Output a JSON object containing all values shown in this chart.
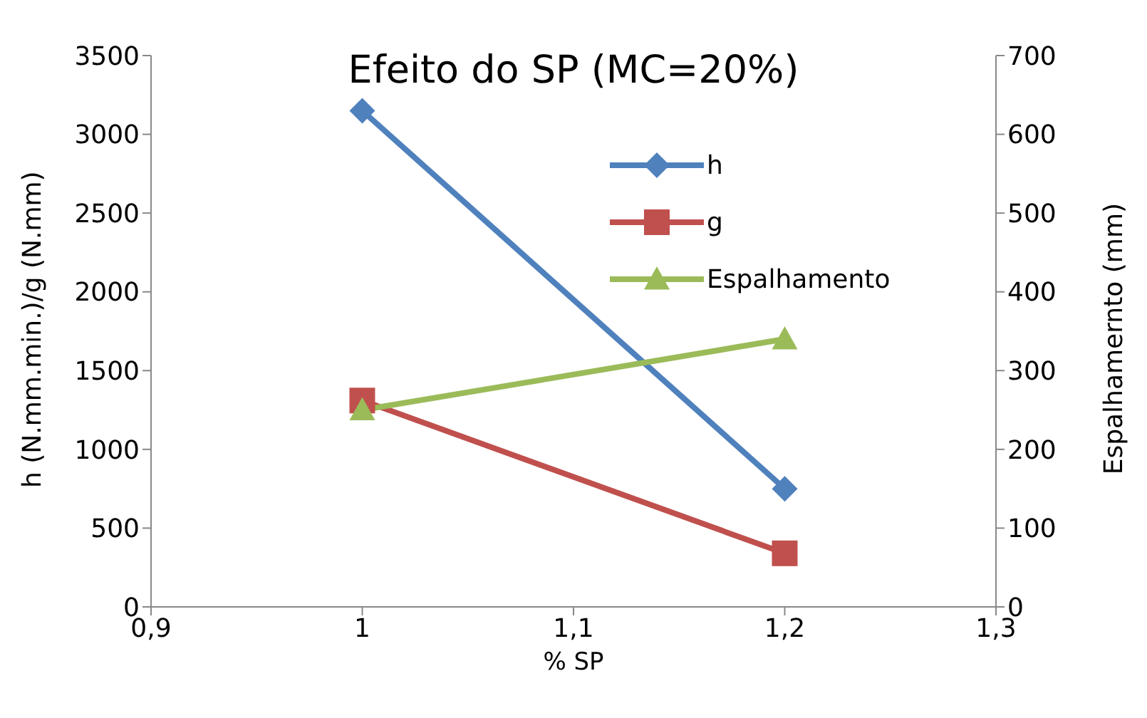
{
  "chart_data": {
    "type": "line",
    "title": "Efeito do SP (MC=20%)",
    "xlabel": "% SP",
    "ylabel": "h (N.mm.min.)/g (N.mm)",
    "y2label": "Espalhamernto (mm)",
    "x": [
      1,
      1.2
    ],
    "series": [
      {
        "name": "h",
        "color": "#4f81bd",
        "marker": "diamond",
        "values": [
          3150,
          750
        ]
      },
      {
        "name": "g",
        "color": "#c0504d",
        "marker": "square",
        "values": [
          1310,
          340
        ]
      },
      {
        "name": "Espalhamento",
        "color": "#9bbb59",
        "marker": "triangle",
        "axis": "y2",
        "values": [
          250,
          340
        ]
      }
    ],
    "xlim": [
      0.9,
      1.3
    ],
    "xticks": [
      {
        "value": 0.9,
        "label": "0,9"
      },
      1,
      {
        "value": 1.1,
        "label": "1,1"
      },
      {
        "value": 1.2,
        "label": "1,2"
      },
      {
        "value": 1.3,
        "label": "1,3"
      }
    ],
    "ylim": [
      0,
      3500
    ],
    "yticks": [
      0,
      500,
      1000,
      1500,
      2000,
      2500,
      3000,
      3500
    ],
    "y2lim": [
      0,
      700
    ],
    "y2ticks": [
      0,
      100,
      200,
      300,
      400,
      500,
      600,
      700
    ],
    "grid": false,
    "legend": "top right",
    "line_style": "solid"
  }
}
